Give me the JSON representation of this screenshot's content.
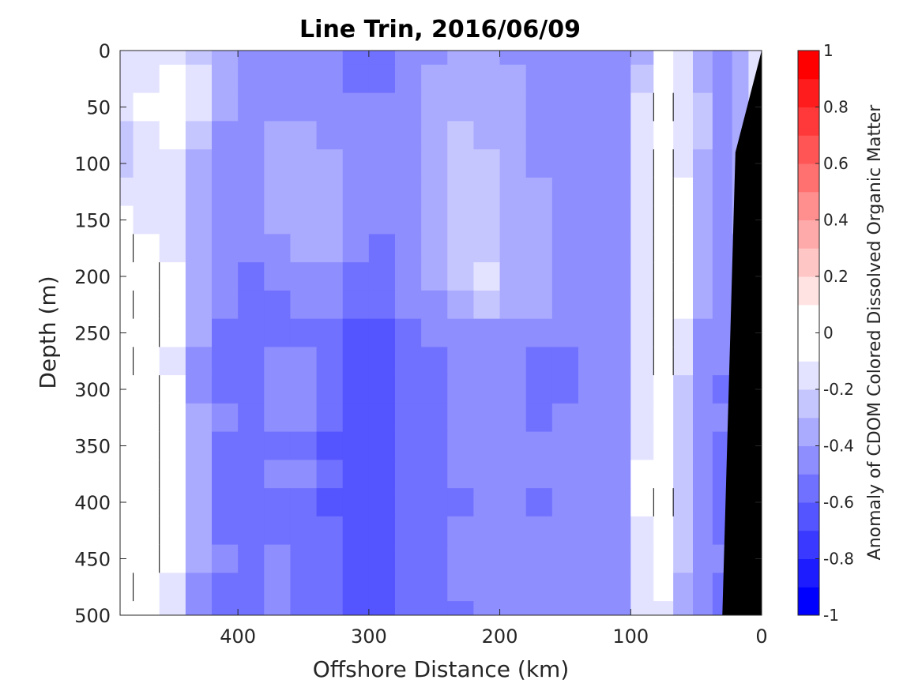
{
  "chart_data": {
    "type": "heatmap",
    "title": "Line Trin, 2016/06/09",
    "xlabel": "Offshore Distance (km)",
    "ylabel": "Depth (m)",
    "xlim": [
      490,
      0
    ],
    "ylim": [
      0,
      500
    ],
    "x_reversed": true,
    "y_reversed": true,
    "x_ticks": [
      "400",
      "300",
      "200",
      "100",
      "0"
    ],
    "x_tick_values": [
      400,
      300,
      200,
      100,
      0
    ],
    "y_ticks": [
      "0",
      "50",
      "100",
      "150",
      "200",
      "250",
      "300",
      "350",
      "400",
      "450",
      "500"
    ],
    "y_tick_values": [
      0,
      50,
      100,
      150,
      200,
      250,
      300,
      350,
      400,
      450,
      500
    ],
    "colorbar": {
      "label": "Anomaly of CDOM Colored Dissolved Organic Matter",
      "range": [
        -1,
        1
      ],
      "levels": [
        -1,
        -0.9,
        -0.8,
        -0.7,
        -0.6,
        -0.5,
        -0.4,
        -0.3,
        -0.2,
        -0.1,
        0,
        0.1,
        0.2,
        0.3,
        0.4,
        0.5,
        0.6,
        0.7,
        0.8,
        0.9,
        1
      ],
      "tick_values": [
        1,
        0.8,
        0.6,
        0.4,
        0.2,
        0,
        -0.2,
        -0.4,
        -0.6,
        -0.8,
        -1
      ],
      "tick_labels": [
        "1",
        "0.8",
        "0.6",
        "0.4",
        "0.2",
        "0",
        "-0.2",
        "-0.4",
        "-0.6",
        "-0.8",
        "-1"
      ],
      "colormap": "blue-white-red"
    },
    "x": [
      490,
      470,
      450,
      430,
      410,
      390,
      370,
      350,
      330,
      310,
      290,
      270,
      250,
      230,
      210,
      190,
      170,
      150,
      130,
      110,
      90,
      75,
      60,
      45,
      30,
      15,
      5
    ],
    "y": [
      0,
      25,
      50,
      75,
      100,
      125,
      150,
      175,
      200,
      225,
      250,
      275,
      300,
      325,
      350,
      375,
      400,
      425,
      450,
      475,
      500
    ],
    "z": [
      [
        -0.2,
        -0.15,
        -0.15,
        -0.25,
        -0.35,
        -0.45,
        -0.5,
        -0.45,
        -0.45,
        -0.55,
        -0.55,
        -0.45,
        -0.4,
        -0.35,
        -0.35,
        -0.4,
        -0.45,
        -0.45,
        -0.45,
        -0.5,
        -0.3,
        -0.1,
        -0.2,
        -0.35,
        -0.45,
        -0.3,
        -0.2
      ],
      [
        -0.2,
        -0.15,
        -0.1,
        -0.2,
        -0.35,
        -0.45,
        -0.45,
        -0.4,
        -0.45,
        -0.55,
        -0.55,
        -0.45,
        -0.35,
        -0.3,
        -0.35,
        -0.35,
        -0.45,
        -0.45,
        -0.45,
        -0.45,
        -0.25,
        -0.05,
        -0.15,
        -0.3,
        -0.45,
        -0.3,
        -0.2
      ],
      [
        -0.2,
        -0.1,
        -0.05,
        -0.2,
        -0.35,
        -0.45,
        -0.4,
        -0.4,
        -0.45,
        -0.5,
        -0.5,
        -0.4,
        -0.3,
        -0.3,
        -0.3,
        -0.35,
        -0.4,
        -0.45,
        -0.45,
        -0.45,
        -0.2,
        0.0,
        -0.15,
        -0.25,
        -0.4,
        -0.3,
        -0.2
      ],
      [
        -0.25,
        -0.15,
        -0.1,
        -0.25,
        -0.4,
        -0.45,
        -0.35,
        -0.35,
        -0.4,
        -0.5,
        -0.5,
        -0.4,
        -0.3,
        -0.25,
        -0.3,
        -0.35,
        -0.45,
        -0.45,
        -0.45,
        -0.45,
        -0.2,
        -0.05,
        -0.15,
        -0.25,
        -0.4,
        -0.3,
        -0.2
      ],
      [
        -0.25,
        -0.2,
        -0.15,
        -0.3,
        -0.45,
        -0.45,
        -0.35,
        -0.3,
        -0.35,
        -0.45,
        -0.5,
        -0.4,
        -0.3,
        -0.25,
        -0.25,
        -0.3,
        -0.4,
        -0.45,
        -0.45,
        -0.45,
        -0.2,
        0.0,
        -0.15,
        -0.3,
        -0.4,
        -0.3,
        -0.25
      ],
      [
        -0.2,
        -0.2,
        -0.2,
        -0.3,
        -0.45,
        -0.45,
        -0.35,
        -0.3,
        -0.3,
        -0.45,
        -0.5,
        -0.4,
        -0.3,
        -0.25,
        -0.25,
        -0.3,
        -0.35,
        -0.4,
        -0.45,
        -0.45,
        -0.15,
        0.05,
        -0.1,
        -0.3,
        -0.45,
        -0.35,
        -0.3
      ],
      [
        -0.1,
        -0.15,
        -0.2,
        -0.35,
        -0.5,
        -0.45,
        -0.35,
        -0.3,
        -0.35,
        -0.45,
        -0.5,
        -0.4,
        -0.3,
        -0.25,
        -0.25,
        -0.3,
        -0.35,
        -0.4,
        -0.45,
        -0.45,
        -0.15,
        0.05,
        -0.1,
        -0.3,
        -0.45,
        -0.35,
        -0.3
      ],
      [
        0.0,
        -0.05,
        -0.15,
        -0.35,
        -0.5,
        -0.5,
        -0.4,
        -0.35,
        -0.35,
        -0.5,
        -0.55,
        -0.45,
        -0.3,
        -0.25,
        -0.25,
        -0.3,
        -0.35,
        -0.4,
        -0.45,
        -0.45,
        -0.15,
        0.05,
        -0.1,
        -0.3,
        -0.45,
        -0.4,
        -0.3
      ],
      [
        0.0,
        0.0,
        -0.1,
        -0.3,
        -0.5,
        -0.55,
        -0.5,
        -0.45,
        -0.45,
        -0.55,
        -0.55,
        -0.45,
        -0.35,
        -0.25,
        -0.2,
        -0.3,
        -0.35,
        -0.4,
        -0.45,
        -0.45,
        -0.15,
        0.05,
        -0.1,
        -0.35,
        -0.45,
        -0.4,
        -0.35
      ],
      [
        -0.05,
        0.0,
        -0.05,
        -0.3,
        -0.5,
        -0.55,
        -0.55,
        -0.5,
        -0.5,
        -0.6,
        -0.6,
        -0.5,
        -0.4,
        -0.3,
        -0.25,
        -0.3,
        -0.35,
        -0.4,
        -0.45,
        -0.45,
        -0.15,
        0.05,
        -0.1,
        -0.35,
        -0.5,
        -0.45,
        -0.35
      ],
      [
        0.0,
        0.0,
        -0.1,
        -0.35,
        -0.55,
        -0.6,
        -0.55,
        -0.55,
        -0.55,
        -0.65,
        -0.65,
        -0.55,
        -0.5,
        -0.45,
        -0.4,
        -0.4,
        -0.45,
        -0.5,
        -0.5,
        -0.45,
        -0.15,
        0.0,
        -0.2,
        -0.4,
        -0.5,
        -0.45,
        -0.4
      ],
      [
        0.0,
        -0.05,
        -0.15,
        -0.4,
        -0.6,
        -0.6,
        -0.5,
        -0.5,
        -0.55,
        -0.65,
        -0.65,
        -0.6,
        -0.55,
        -0.5,
        -0.5,
        -0.5,
        -0.55,
        -0.55,
        -0.5,
        -0.45,
        -0.15,
        0.0,
        -0.2,
        -0.45,
        -0.5,
        -0.45,
        -0.4
      ],
      [
        0.0,
        0.0,
        -0.1,
        -0.4,
        -0.55,
        -0.55,
        -0.45,
        -0.45,
        -0.6,
        -0.7,
        -0.7,
        -0.6,
        -0.55,
        -0.5,
        -0.5,
        -0.5,
        -0.55,
        -0.55,
        -0.5,
        -0.45,
        -0.15,
        -0.05,
        -0.25,
        -0.45,
        -0.55,
        -0.5,
        -0.45
      ],
      [
        0.05,
        0.0,
        -0.1,
        -0.35,
        -0.5,
        -0.55,
        -0.5,
        -0.5,
        -0.6,
        -0.65,
        -0.65,
        -0.6,
        -0.55,
        -0.5,
        -0.5,
        -0.5,
        -0.55,
        -0.5,
        -0.45,
        -0.45,
        -0.15,
        -0.05,
        -0.25,
        -0.45,
        -0.5,
        -0.5,
        -0.45
      ],
      [
        0.0,
        0.0,
        -0.1,
        -0.35,
        -0.55,
        -0.6,
        -0.55,
        -0.6,
        -0.65,
        -0.7,
        -0.7,
        -0.6,
        -0.55,
        -0.5,
        -0.5,
        -0.5,
        -0.5,
        -0.5,
        -0.45,
        -0.45,
        -0.15,
        -0.05,
        -0.25,
        -0.45,
        -0.55,
        -0.5,
        -0.45
      ],
      [
        0.05,
        0.0,
        -0.05,
        -0.3,
        -0.55,
        -0.55,
        -0.45,
        -0.45,
        -0.6,
        -0.7,
        -0.7,
        -0.6,
        -0.55,
        -0.5,
        -0.5,
        -0.5,
        -0.5,
        -0.5,
        -0.45,
        -0.45,
        -0.1,
        -0.05,
        -0.25,
        -0.45,
        -0.55,
        -0.5,
        -0.45
      ],
      [
        0.0,
        0.0,
        -0.05,
        -0.35,
        -0.55,
        -0.6,
        -0.55,
        -0.55,
        -0.65,
        -0.7,
        -0.7,
        -0.6,
        -0.55,
        -0.55,
        -0.5,
        -0.5,
        -0.55,
        -0.5,
        -0.45,
        -0.45,
        -0.1,
        0.0,
        -0.25,
        -0.45,
        -0.55,
        -0.5,
        -0.45
      ],
      [
        0.0,
        0.0,
        -0.1,
        -0.35,
        -0.55,
        -0.6,
        -0.55,
        -0.55,
        -0.6,
        -0.65,
        -0.65,
        -0.6,
        -0.55,
        -0.5,
        -0.5,
        -0.5,
        -0.5,
        -0.5,
        -0.45,
        -0.45,
        -0.15,
        -0.05,
        -0.25,
        -0.45,
        -0.55,
        -0.5,
        -0.45
      ],
      [
        0.0,
        0.0,
        -0.1,
        -0.35,
        -0.5,
        -0.55,
        -0.5,
        -0.55,
        -0.6,
        -0.65,
        -0.65,
        -0.6,
        -0.55,
        -0.5,
        -0.5,
        -0.45,
        -0.45,
        -0.45,
        -0.4,
        -0.4,
        -0.15,
        -0.05,
        -0.25,
        -0.4,
        -0.5,
        -0.5,
        -0.45
      ],
      [
        0.0,
        -0.05,
        -0.15,
        -0.4,
        -0.55,
        -0.55,
        -0.5,
        -0.55,
        -0.6,
        -0.65,
        -0.65,
        -0.6,
        -0.55,
        -0.5,
        -0.5,
        -0.5,
        -0.5,
        -0.5,
        -0.45,
        -0.45,
        -0.2,
        -0.1,
        -0.3,
        -0.45,
        -0.55,
        -0.5,
        -0.45
      ],
      [
        -0.05,
        -0.1,
        -0.2,
        -0.45,
        -0.55,
        -0.55,
        -0.5,
        -0.55,
        -0.6,
        -0.65,
        -0.65,
        -0.6,
        -0.55,
        -0.55,
        -0.5,
        -0.5,
        -0.5,
        -0.5,
        -0.5,
        -0.45,
        -0.2,
        -0.15,
        -0.3,
        -0.45,
        -0.55,
        -0.55,
        -0.5
      ]
    ],
    "seafloor": {
      "note": "",
      "polygon": [
        [
          0,
          0
        ],
        [
          0,
          500
        ],
        [
          30,
          500
        ],
        [
          20,
          90
        ],
        [
          0,
          0
        ]
      ]
    }
  }
}
